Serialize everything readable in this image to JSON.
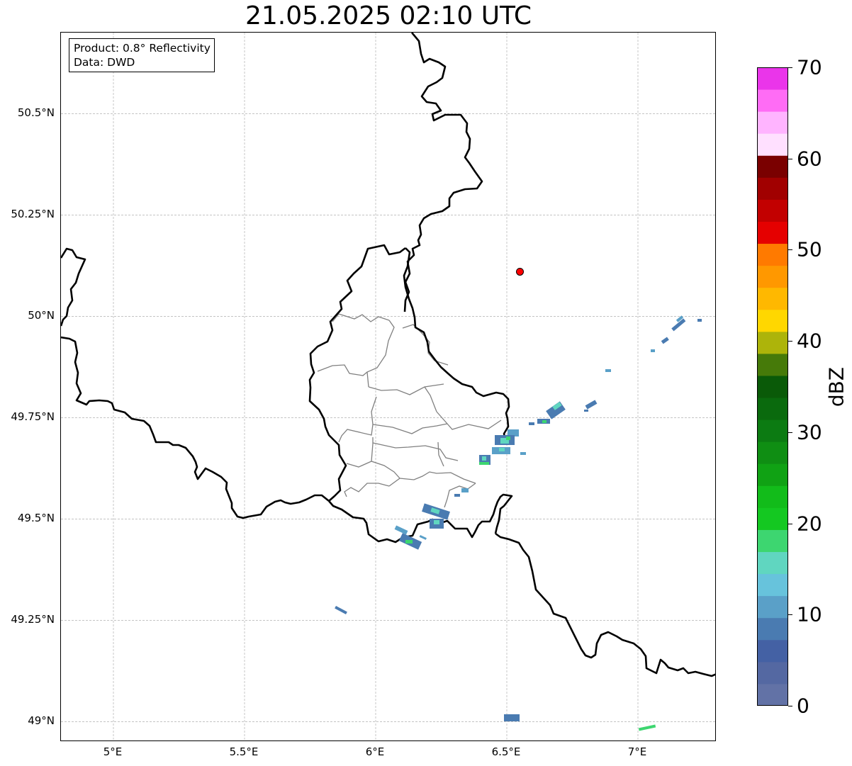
{
  "title": "21.05.2025 02:10 UTC",
  "info_box": {
    "product_line": "Product: 0.8° Reflectivity",
    "data_line": "Data: DWD"
  },
  "axes": {
    "lat_ticks": [
      "50.5°N",
      "50.25°N",
      "50°N",
      "49.75°N",
      "49.5°N",
      "49.25°N",
      "49°N"
    ],
    "lon_ticks": [
      "5°E",
      "5.5°E",
      "6°E",
      "6.5°E",
      "7°E"
    ],
    "lat_range": [
      48.95,
      50.7
    ],
    "lon_range": [
      4.8,
      7.3
    ],
    "grid": true
  },
  "colorbar": {
    "label": "dBZ",
    "range": [
      0,
      70
    ],
    "ticks": [
      "0",
      "10",
      "20",
      "30",
      "40",
      "50",
      "60",
      "70"
    ],
    "colors": [
      "#6272a6",
      "#5468a2",
      "#4461a4",
      "#4a7bb1",
      "#5aa0c8",
      "#67c3dc",
      "#60d6c0",
      "#3dd670",
      "#14c821",
      "#12bc1a",
      "#10a214",
      "#0f8e13",
      "#0c7b12",
      "#0a6a0d",
      "#0a5a08",
      "#467a09",
      "#adb40a",
      "#ffd700",
      "#ffb800",
      "#ff9800",
      "#ff7a00",
      "#e50000",
      "#c20000",
      "#a10000",
      "#7a0000",
      "#ffe0ff",
      "#ffb4ff",
      "#ff6cf5",
      "#ea35ea"
    ]
  },
  "marker": {
    "name": "radar-site",
    "lon": 6.55,
    "lat": 50.11,
    "color": "#ff0000"
  }
}
